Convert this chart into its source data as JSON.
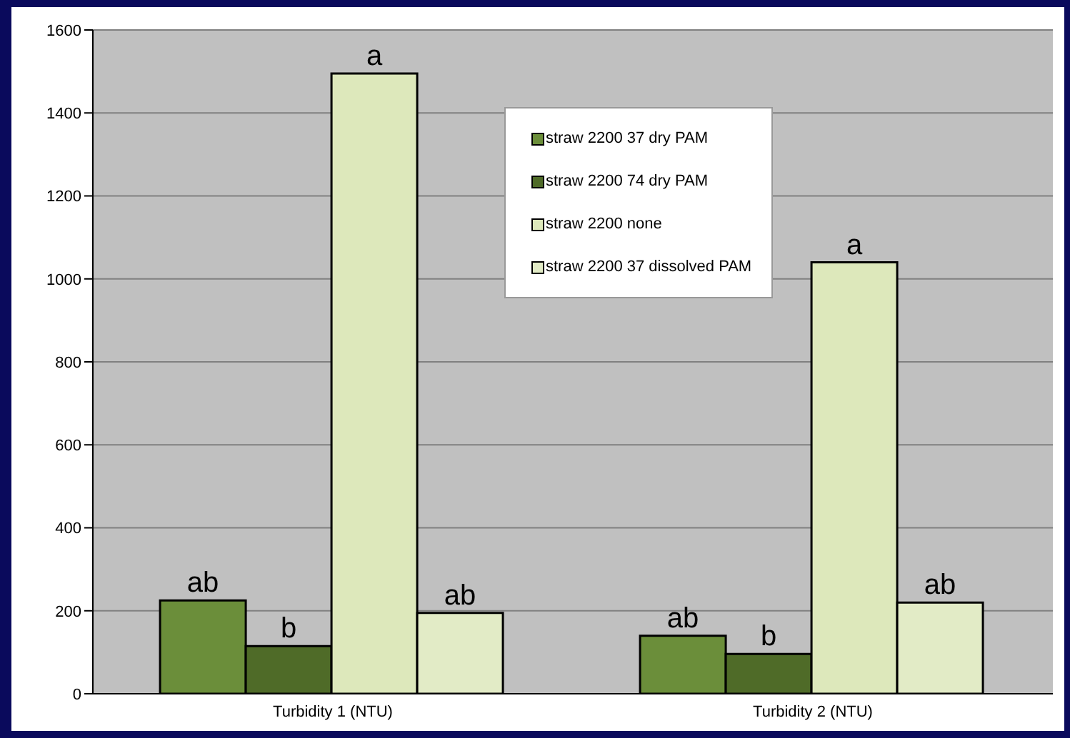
{
  "chart_data": {
    "type": "bar",
    "categories": [
      "Turbidity 1 (NTU)",
      "Turbidity 2 (NTU)"
    ],
    "series": [
      {
        "name": "straw 2200 37 dry PAM",
        "color": "#6b8e3a",
        "values": [
          225,
          140
        ],
        "value_labels": [
          "ab",
          "ab"
        ]
      },
      {
        "name": "straw 2200 74 dry PAM",
        "color": "#4f6b28",
        "values": [
          115,
          96
        ],
        "value_labels": [
          "b",
          "b"
        ]
      },
      {
        "name": "straw 2200 none",
        "color": "#dde8bb",
        "values": [
          1495,
          1040
        ],
        "value_labels": [
          "a",
          "a"
        ]
      },
      {
        "name": "straw 2200 37 dissolved PAM",
        "color": "#e2ebc6",
        "values": [
          195,
          220
        ],
        "value_labels": [
          "ab",
          "ab"
        ]
      }
    ],
    "ylim": [
      0,
      1600
    ],
    "yticks": [
      0,
      200,
      400,
      600,
      800,
      1000,
      1200,
      1400,
      1600
    ],
    "grid": "y",
    "legend": "top"
  }
}
